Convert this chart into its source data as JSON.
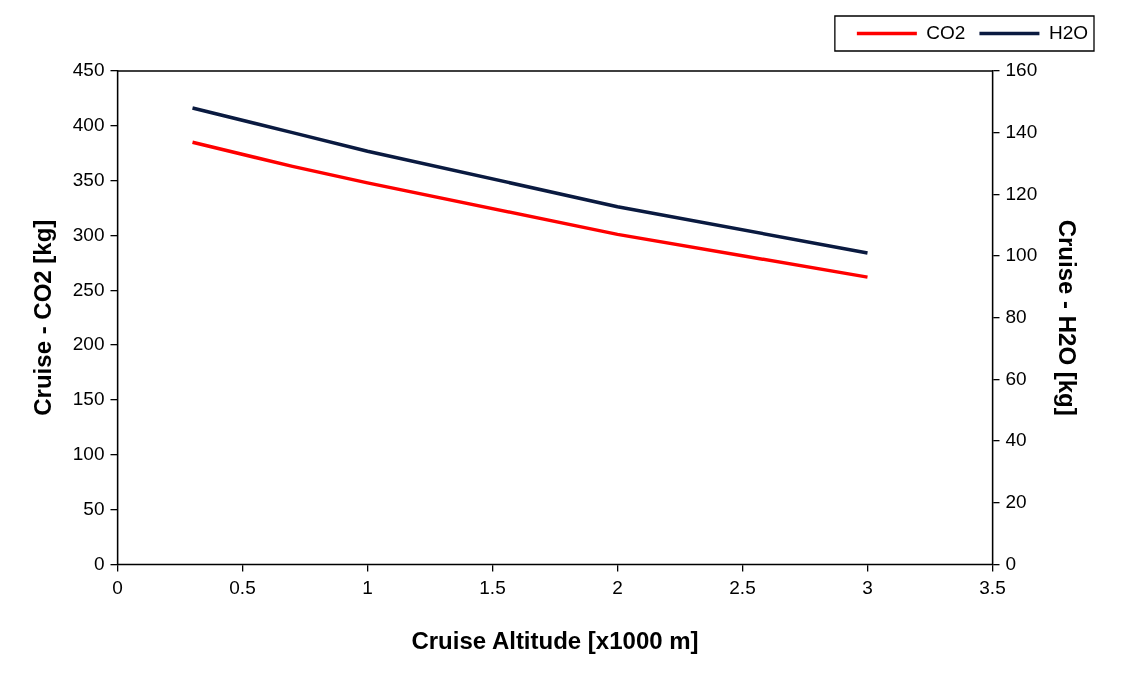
{
  "chart_data": {
    "type": "line",
    "xlabel": "Cruise Altitude [x1000 m]",
    "ylabel": "Cruise - CO2 [kg]",
    "y2label": "Cruise - H2O [kg]",
    "x": [
      0.3,
      0.7,
      1,
      2,
      3
    ],
    "series": [
      {
        "name": "CO2",
        "color": "#ff0000",
        "values": [
          385,
          363,
          348,
          301,
          262
        ]
      },
      {
        "name": "H2O",
        "color": "#0a1a40",
        "axis": "y2",
        "values": [
          148,
          140,
          134,
          116,
          101
        ]
      }
    ],
    "xlim": [
      0,
      3.5
    ],
    "xticks": [
      0,
      0.5,
      1,
      1.5,
      2,
      2.5,
      3,
      3.5
    ],
    "ylim": [
      0,
      450
    ],
    "yticks": [
      0,
      50,
      100,
      150,
      200,
      250,
      300,
      350,
      400,
      450
    ],
    "y2lim": [
      0,
      160
    ],
    "y2ticks": [
      0,
      20,
      40,
      60,
      80,
      100,
      120,
      140,
      160
    ],
    "grid": false,
    "legend": "top right",
    "marker": "none",
    "line_style": "solid"
  }
}
